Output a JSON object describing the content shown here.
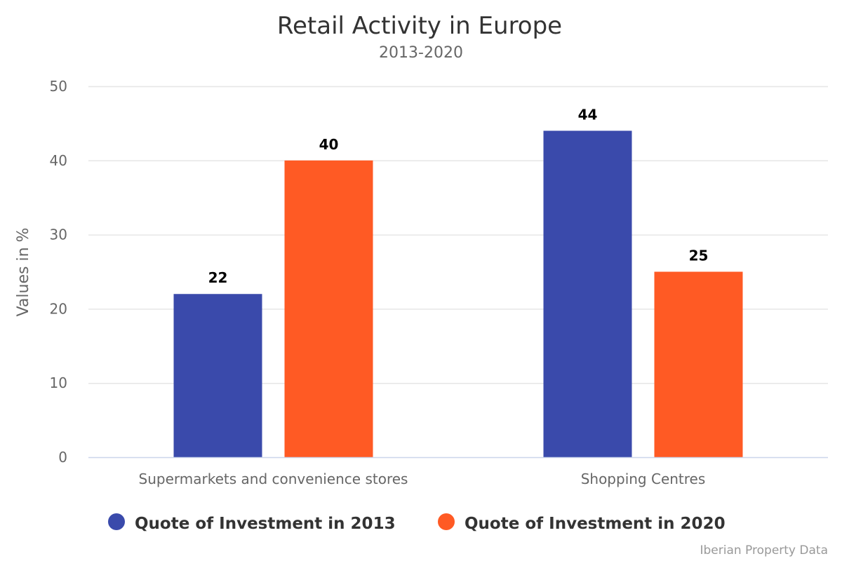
{
  "chart_data": {
    "type": "bar",
    "title": "Retail Activity in Europe",
    "subtitle": "2013-2020",
    "xlabel": "",
    "ylabel": "Values in %",
    "ylim": [
      0,
      50
    ],
    "yticks": [
      "0",
      "10",
      "20",
      "30",
      "40",
      "50"
    ],
    "grid": true,
    "legend_position": "bottom",
    "categories": [
      "Supermarkets and convenience stores",
      "Shopping Centres"
    ],
    "series": [
      {
        "name": "Quote of Investment in 2013",
        "color": "#3a4aab",
        "values": [
          22,
          44
        ]
      },
      {
        "name": "Quote of Investment in 2020",
        "color": "#ff5a24",
        "values": [
          40,
          25
        ]
      }
    ],
    "credits": "Iberian Property Data"
  }
}
